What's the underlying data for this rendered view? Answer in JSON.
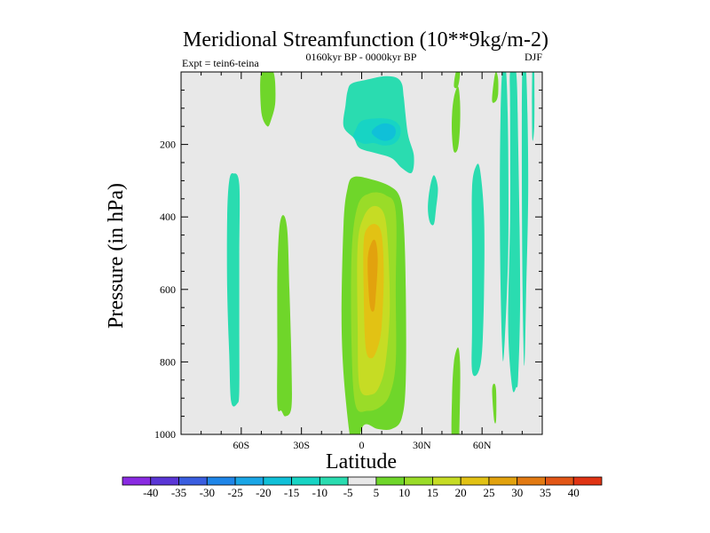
{
  "chart_data": {
    "type": "contour",
    "title": "Meridional Streamfunction (10**9kg/m-2)",
    "subtitle_left": "Expt = tein6-teina",
    "subtitle_center": "0160kyr BP - 0000kyr BP",
    "subtitle_right": "DJF",
    "xlabel": "Latitude",
    "ylabel": "Pressure (in hPa)",
    "xlim": [
      -90,
      90
    ],
    "ylim": [
      1000,
      0
    ],
    "x_ticks": [
      -60,
      -30,
      0,
      30,
      60
    ],
    "x_tick_labels": [
      "60S",
      "30S",
      "0",
      "30N",
      "60N"
    ],
    "y_ticks": [
      200,
      400,
      600,
      800,
      1000
    ],
    "y_tick_labels": [
      "200",
      "400",
      "600",
      "800",
      "1000"
    ],
    "background_color": "#e8e8e8",
    "colorbar": {
      "levels": [
        -40,
        -35,
        -30,
        -25,
        -20,
        -15,
        -10,
        -5,
        5,
        10,
        15,
        20,
        25,
        30,
        35,
        40
      ],
      "level_labels": [
        "-40",
        "-35",
        "-30",
        "-25",
        "-20",
        "-15",
        "-10",
        "-5",
        "5",
        "10",
        "15",
        "20",
        "25",
        "30",
        "35",
        "40"
      ],
      "colors": [
        "#8a2be2",
        "#5a36d6",
        "#3a5ee0",
        "#1f86e8",
        "#1aa6e6",
        "#10c0d8",
        "#17d4c4",
        "#2adcb0",
        "#e8e8e8",
        "#6fd62a",
        "#9adc28",
        "#c6dc24",
        "#e2c214",
        "#e2a20e",
        "#e27a12",
        "#e25616",
        "#e03414"
      ]
    },
    "regions": [
      {
        "name": "upper-tropical-cell-outer",
        "bin": -7.5,
        "color": "#2adcb0",
        "points": [
          [
            -7,
            52
          ],
          [
            -5,
            32
          ],
          [
            2,
            22
          ],
          [
            11,
            12
          ],
          [
            17,
            15
          ],
          [
            20,
            32
          ],
          [
            21,
            70
          ],
          [
            23,
            170
          ],
          [
            26,
            230
          ],
          [
            25,
            278
          ],
          [
            20,
            265
          ],
          [
            15,
            238
          ],
          [
            7,
            224
          ],
          [
            -1,
            210
          ],
          [
            -4,
            182
          ],
          [
            -9,
            150
          ],
          [
            -8,
            90
          ]
        ]
      },
      {
        "name": "upper-tropical-cell-mid",
        "bin": -12.5,
        "color": "#17d4c4",
        "points": [
          [
            -4,
            182
          ],
          [
            -3,
            160
          ],
          [
            0,
            135
          ],
          [
            8,
            128
          ],
          [
            15,
            132
          ],
          [
            19,
            150
          ],
          [
            19,
            178
          ],
          [
            16,
            198
          ],
          [
            11,
            203
          ],
          [
            6,
            196
          ],
          [
            1,
            198
          ]
        ]
      },
      {
        "name": "upper-tropical-cell-core",
        "bin": -17.5,
        "color": "#10c0d8",
        "points": [
          [
            5,
            165
          ],
          [
            8,
            148
          ],
          [
            12,
            142
          ],
          [
            16,
            150
          ],
          [
            17,
            168
          ],
          [
            15,
            185
          ],
          [
            11,
            190
          ],
          [
            7,
            180
          ]
        ]
      },
      {
        "name": "tropical-cell-5",
        "bin": 7.5,
        "color": "#6fd62a",
        "points": [
          [
            -4,
            1050
          ],
          [
            -8,
            900
          ],
          [
            -10,
            700
          ],
          [
            -9,
            420
          ],
          [
            -7,
            320
          ],
          [
            -4,
            290
          ],
          [
            4,
            295
          ],
          [
            14,
            315
          ],
          [
            19,
            345
          ],
          [
            21,
            420
          ],
          [
            22,
            600
          ],
          [
            22,
            850
          ],
          [
            20,
            955
          ],
          [
            15,
            985
          ],
          [
            8,
            985
          ],
          [
            1,
            975
          ]
        ]
      },
      {
        "name": "tropical-cell-10",
        "bin": 12.5,
        "color": "#9adc28",
        "points": [
          [
            -3,
            920
          ],
          [
            -5,
            760
          ],
          [
            -5,
            500
          ],
          [
            -2,
            370
          ],
          [
            4,
            335
          ],
          [
            12,
            340
          ],
          [
            17,
            385
          ],
          [
            17,
            600
          ],
          [
            17,
            800
          ],
          [
            14,
            890
          ],
          [
            9,
            925
          ],
          [
            3,
            935
          ]
        ]
      },
      {
        "name": "tropical-cell-15",
        "bin": 17.5,
        "color": "#c6dc24",
        "points": [
          [
            -1,
            870
          ],
          [
            -2,
            700
          ],
          [
            -2,
            480
          ],
          [
            1,
            400
          ],
          [
            6,
            370
          ],
          [
            11,
            390
          ],
          [
            13,
            470
          ],
          [
            14,
            650
          ],
          [
            12,
            800
          ],
          [
            9,
            865
          ],
          [
            5,
            890
          ]
        ]
      },
      {
        "name": "tropical-cell-20",
        "bin": 22.5,
        "color": "#e2c214",
        "points": [
          [
            2,
            760
          ],
          [
            1,
            600
          ],
          [
            1,
            470
          ],
          [
            3,
            430
          ],
          [
            7,
            420
          ],
          [
            10,
            450
          ],
          [
            11,
            560
          ],
          [
            10,
            700
          ],
          [
            8,
            760
          ],
          [
            5,
            790
          ]
        ]
      },
      {
        "name": "tropical-cell-25",
        "bin": 27.5,
        "color": "#e2a20e",
        "points": [
          [
            4,
            640
          ],
          [
            3,
            520
          ],
          [
            5,
            470
          ],
          [
            7,
            468
          ],
          [
            8,
            520
          ],
          [
            7,
            620
          ],
          [
            6,
            660
          ]
        ]
      },
      {
        "name": "midlat-south-band",
        "bin": -7.5,
        "color": "#2adcb0",
        "points": [
          [
            -65,
            910
          ],
          [
            -66,
            780
          ],
          [
            -67,
            600
          ],
          [
            -67,
            400
          ],
          [
            -66,
            300
          ],
          [
            -64,
            280
          ],
          [
            -61,
            310
          ],
          [
            -61,
            500
          ],
          [
            -61,
            700
          ],
          [
            -61,
            880
          ],
          [
            -62,
            915
          ]
        ]
      },
      {
        "name": "south-band-positive",
        "bin": 7.5,
        "color": "#6fd62a",
        "points": [
          [
            -42,
            920
          ],
          [
            -42,
            760
          ],
          [
            -42,
            560
          ],
          [
            -41,
            430
          ],
          [
            -39,
            395
          ],
          [
            -37,
            440
          ],
          [
            -36,
            600
          ],
          [
            -35,
            800
          ],
          [
            -35,
            925
          ],
          [
            -38,
            950
          ],
          [
            -40,
            935
          ]
        ]
      },
      {
        "name": "south-polar-upper-band",
        "bin": 7.5,
        "color": "#6fd62a",
        "points": [
          [
            -50,
            0
          ],
          [
            -44,
            0
          ],
          [
            -43,
            80
          ],
          [
            -45,
            130
          ],
          [
            -47,
            150
          ],
          [
            -50,
            110
          ]
        ]
      },
      {
        "name": "north-small-negative",
        "bin": -7.5,
        "color": "#2adcb0",
        "points": [
          [
            33,
            375
          ],
          [
            34,
            320
          ],
          [
            36,
            285
          ],
          [
            38,
            320
          ],
          [
            37,
            380
          ],
          [
            36,
            420
          ],
          [
            34,
            415
          ]
        ]
      },
      {
        "name": "north-upper-positive",
        "bin": 7.5,
        "color": "#6fd62a",
        "points": [
          [
            45,
            175
          ],
          [
            45,
            120
          ],
          [
            46,
            70
          ],
          [
            48,
            40
          ],
          [
            49,
            80
          ],
          [
            49,
            150
          ],
          [
            48,
            210
          ],
          [
            46,
            220
          ]
        ]
      },
      {
        "name": "north-small-top-positive",
        "bin": 7.5,
        "color": "#6fd62a",
        "points": [
          [
            46,
            40
          ],
          [
            47,
            0
          ],
          [
            49,
            0
          ],
          [
            48,
            40
          ]
        ]
      },
      {
        "name": "north-lower-positive",
        "bin": 7.5,
        "color": "#6fd62a",
        "points": [
          [
            45,
            1030
          ],
          [
            45,
            900
          ],
          [
            46,
            800
          ],
          [
            48,
            760
          ],
          [
            49,
            800
          ],
          [
            49,
            900
          ],
          [
            48,
            1060
          ]
        ]
      },
      {
        "name": "north-mid-negative",
        "bin": -7.5,
        "color": "#2adcb0",
        "points": [
          [
            55,
            825
          ],
          [
            55,
            700
          ],
          [
            55,
            500
          ],
          [
            55,
            320
          ],
          [
            57,
            260
          ],
          [
            59,
            270
          ],
          [
            61,
            400
          ],
          [
            61,
            600
          ],
          [
            60,
            770
          ],
          [
            58,
            830
          ]
        ]
      },
      {
        "name": "north-upper-narrow-positive",
        "bin": 7.5,
        "color": "#6fd62a",
        "points": [
          [
            65,
            80
          ],
          [
            66,
            20
          ],
          [
            67,
            0
          ],
          [
            68,
            20
          ],
          [
            68,
            60
          ],
          [
            67,
            80
          ]
        ]
      },
      {
        "name": "north-lower-narrow-positive",
        "bin": 7.5,
        "color": "#6fd62a",
        "points": [
          [
            66,
            960
          ],
          [
            65,
            880
          ],
          [
            66,
            860
          ],
          [
            67,
            880
          ],
          [
            67,
            960
          ]
        ]
      },
      {
        "name": "north-polar-band-a",
        "bin": -7.5,
        "color": "#2adcb0",
        "points": [
          [
            70,
            760
          ],
          [
            69,
            500
          ],
          [
            69,
            200
          ],
          [
            70,
            0
          ],
          [
            72,
            0
          ],
          [
            73,
            200
          ],
          [
            73,
            500
          ],
          [
            71,
            770
          ]
        ]
      },
      {
        "name": "north-polar-band-b",
        "bin": -7.5,
        "color": "#2adcb0",
        "points": [
          [
            75,
            870
          ],
          [
            73,
            700
          ],
          [
            74,
            400
          ],
          [
            74,
            100
          ],
          [
            74,
            0
          ],
          [
            77,
            0
          ],
          [
            78,
            200
          ],
          [
            79,
            600
          ],
          [
            78,
            840
          ],
          [
            77,
            870
          ]
        ]
      },
      {
        "name": "north-polar-band-c",
        "bin": -7.5,
        "color": "#2adcb0",
        "points": [
          [
            80,
            0
          ],
          [
            82,
            0
          ],
          [
            83,
            300
          ],
          [
            82,
            600
          ],
          [
            81,
            810
          ],
          [
            80,
            500
          ]
        ]
      },
      {
        "name": "north-polar-band-d",
        "bin": -7.5,
        "color": "#2adcb0",
        "points": [
          [
            85,
            0
          ],
          [
            86,
            0
          ],
          [
            86,
            150
          ],
          [
            85,
            180
          ]
        ]
      }
    ]
  }
}
